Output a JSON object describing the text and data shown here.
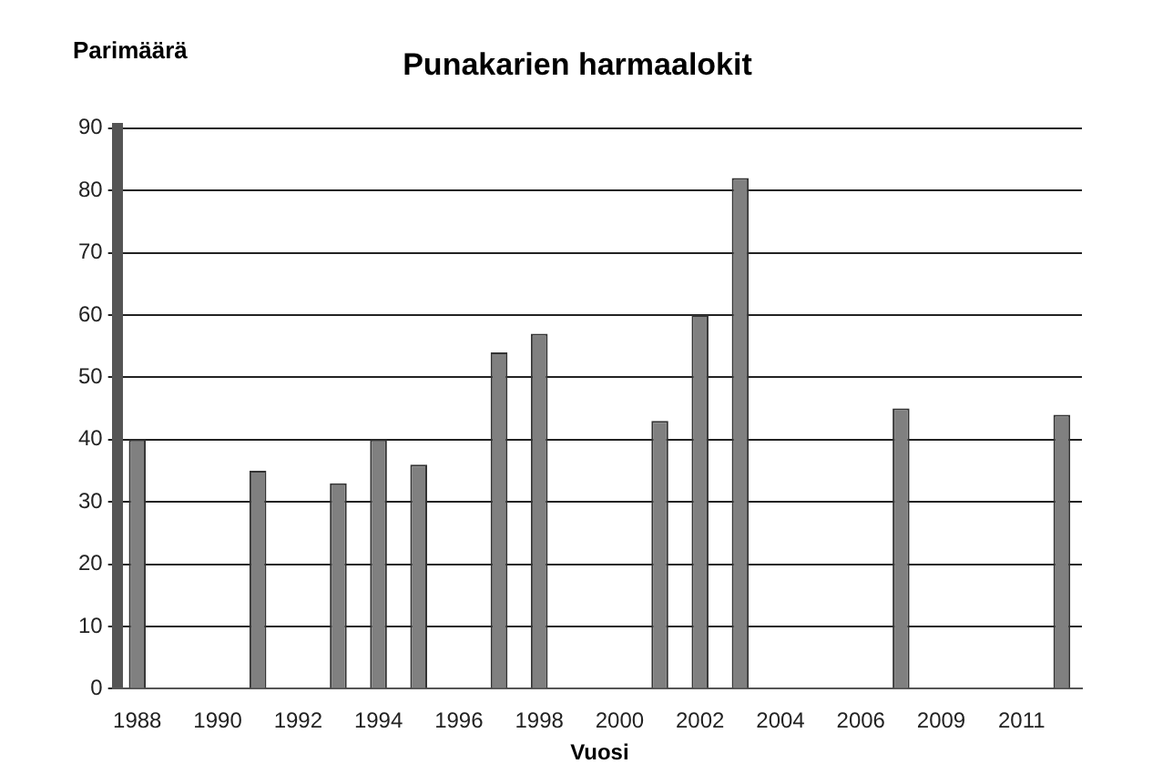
{
  "chart_data": {
    "type": "bar",
    "title": "Punakarien harmaalokit",
    "xlabel": "Vuosi",
    "ylabel": "Parimäärä",
    "categories": [
      "1988",
      null,
      "1990",
      null,
      "1992",
      null,
      "1994",
      null,
      "1996",
      null,
      "1998",
      null,
      "2000",
      null,
      "2002",
      null,
      "2004",
      null,
      "2006",
      null,
      "2009",
      null,
      "2011",
      null
    ],
    "values": [
      40,
      null,
      null,
      35,
      null,
      33,
      40,
      36,
      null,
      54,
      57,
      null,
      null,
      43,
      60,
      82,
      null,
      null,
      null,
      45,
      null,
      null,
      null,
      44
    ],
    "color": "#808080",
    "ylim": [
      0,
      90
    ],
    "yticks": [
      0,
      10,
      20,
      30,
      40,
      50,
      60,
      70,
      80,
      90
    ],
    "grid": "y",
    "legend": false
  }
}
